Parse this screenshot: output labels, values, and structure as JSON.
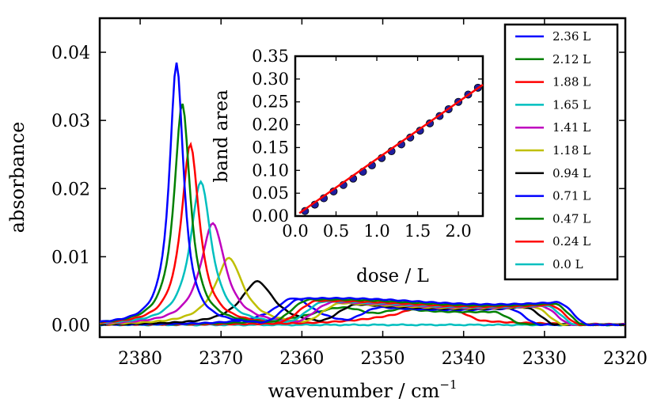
{
  "chart_data": [
    {
      "type": "line",
      "xlabel": "wavenumber / cm",
      "xlabel_exponent": "−1",
      "ylabel": "absorbance",
      "xlim": [
        2385,
        2320
      ],
      "ylim": [
        -0.0018,
        0.045
      ],
      "x_ticks": [
        2380,
        2370,
        2360,
        2350,
        2340,
        2330,
        2320
      ],
      "y_ticks": [
        0.0,
        0.01,
        0.02,
        0.03,
        0.04
      ],
      "x_tick_labels": [
        "2380",
        "2370",
        "2360",
        "2350",
        "2340",
        "2330",
        "2320"
      ],
      "y_tick_labels": [
        "0.00",
        "0.01",
        "0.02",
        "0.03",
        "0.04"
      ],
      "legend_position": "top-right",
      "grid": false,
      "series": [
        {
          "name": "2.36 L",
          "color": "#0000ff",
          "peak_x": 2375.5,
          "peak_y": 0.0393,
          "width": 1.05,
          "tail_start": 2362,
          "tail_end": 2327,
          "plateau": 0.0034
        },
        {
          "name": "2.12 L",
          "color": "#008000",
          "peak_x": 2374.8,
          "peak_y": 0.0332,
          "width": 1.2,
          "tail_start": 2361,
          "tail_end": 2327.5,
          "plateau": 0.0032
        },
        {
          "name": "1.88 L",
          "color": "#ff0000",
          "peak_x": 2373.8,
          "peak_y": 0.027,
          "width": 1.35,
          "tail_start": 2360,
          "tail_end": 2328,
          "plateau": 0.003
        },
        {
          "name": "1.65 L",
          "color": "#00bfbf",
          "peak_x": 2372.5,
          "peak_y": 0.0215,
          "width": 1.55,
          "tail_start": 2359,
          "tail_end": 2328.5,
          "plateau": 0.0029
        },
        {
          "name": "1.41 L",
          "color": "#bf00bf",
          "peak_x": 2371.0,
          "peak_y": 0.0152,
          "width": 1.85,
          "tail_start": 2358,
          "tail_end": 2329,
          "plateau": 0.0028
        },
        {
          "name": "1.18 L",
          "color": "#bfbf00",
          "peak_x": 2369.0,
          "peak_y": 0.01,
          "width": 2.1,
          "tail_start": 2357,
          "tail_end": 2330,
          "plateau": 0.0027
        },
        {
          "name": "0.94 L",
          "color": "#000000",
          "peak_x": 2365.5,
          "peak_y": 0.0065,
          "width": 2.5,
          "tail_start": 2355,
          "tail_end": 2331,
          "plateau": 0.0026
        },
        {
          "name": "0.71 L",
          "color": "#0000ff",
          "peak_x": 2361.0,
          "peak_y": 0.004,
          "width": 3.0,
          "tail_start": 2352,
          "tail_end": 2333,
          "plateau": 0.0024
        },
        {
          "name": "0.47 L",
          "color": "#008000",
          "peak_x": 2355.0,
          "peak_y": 0.0026,
          "width": 5.0,
          "tail_start": 2349,
          "tail_end": 2335,
          "plateau": 0.0018
        },
        {
          "name": "0.24 L",
          "color": "#ff0000",
          "peak_x": 2346.0,
          "peak_y": 0.0018,
          "width": 6.0,
          "tail_start": 2346,
          "tail_end": 2340,
          "plateau": 0.0012
        },
        {
          "name": "0.0 L",
          "color": "#00bfbf",
          "peak_x": 2350.0,
          "peak_y": 0.0,
          "width": 10.0,
          "tail_start": 2350,
          "tail_end": 2350,
          "plateau": 0.0
        }
      ]
    },
    {
      "type": "scatter",
      "xlabel": "dose / L",
      "ylabel": "band area",
      "xlim": [
        0,
        2.3
      ],
      "ylim": [
        0,
        0.35
      ],
      "x_ticks": [
        0.0,
        0.5,
        1.0,
        1.5,
        2.0
      ],
      "y_ticks": [
        0.0,
        0.05,
        0.1,
        0.15,
        0.2,
        0.25,
        0.3,
        0.35
      ],
      "x_tick_labels": [
        "0.0",
        "0.5",
        "1.0",
        "1.5",
        "2.0"
      ],
      "y_tick_labels": [
        "0.00",
        "0.05",
        "0.10",
        "0.15",
        "0.20",
        "0.25",
        "0.30",
        "0.35"
      ],
      "marker_color": "#1f1f9f",
      "fit_color": "#ff0000",
      "fit": {
        "slope": 0.125,
        "intercept": 0.0
      },
      "points": [
        {
          "x": 0.12,
          "y": 0.011
        },
        {
          "x": 0.24,
          "y": 0.025
        },
        {
          "x": 0.35,
          "y": 0.039
        },
        {
          "x": 0.47,
          "y": 0.054
        },
        {
          "x": 0.59,
          "y": 0.068
        },
        {
          "x": 0.71,
          "y": 0.082
        },
        {
          "x": 0.83,
          "y": 0.097
        },
        {
          "x": 0.94,
          "y": 0.111
        },
        {
          "x": 1.06,
          "y": 0.127
        },
        {
          "x": 1.18,
          "y": 0.142
        },
        {
          "x": 1.3,
          "y": 0.157
        },
        {
          "x": 1.41,
          "y": 0.172
        },
        {
          "x": 1.53,
          "y": 0.187
        },
        {
          "x": 1.65,
          "y": 0.203
        },
        {
          "x": 1.77,
          "y": 0.219
        },
        {
          "x": 1.88,
          "y": 0.234
        },
        {
          "x": 2.0,
          "y": 0.25
        },
        {
          "x": 2.12,
          "y": 0.266
        },
        {
          "x": 2.24,
          "y": 0.281
        }
      ]
    }
  ]
}
